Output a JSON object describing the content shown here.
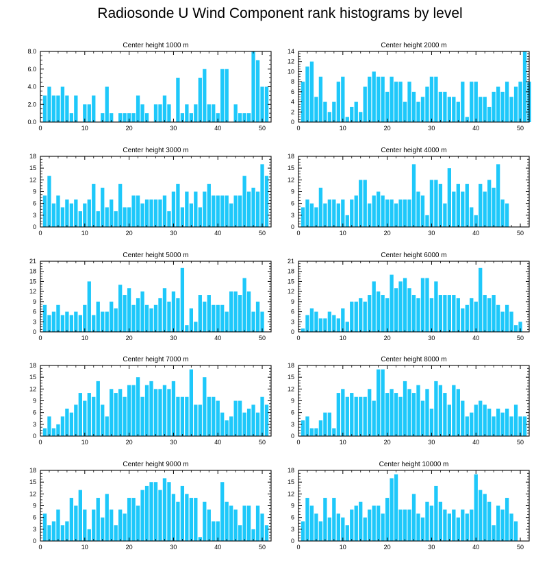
{
  "title": "Radiosonde U Wind Component rank histograms by level",
  "bar_color": "#1ec8fa",
  "chart_data": [
    {
      "type": "bar",
      "title": "Center height 1000 m",
      "xlim": [
        0,
        52
      ],
      "ylim": [
        0,
        8
      ],
      "xticks": [
        0,
        10,
        20,
        30,
        40,
        50
      ],
      "xtick_labels": [
        "0",
        "10",
        "20",
        "30",
        "40",
        "50"
      ],
      "yticks": [
        0,
        2,
        4,
        6,
        8
      ],
      "ytick_labels": [
        "0.0",
        "2.0",
        "4.0",
        "6.0",
        "8.0"
      ],
      "values": [
        3,
        4,
        3,
        3,
        4,
        3,
        1,
        3,
        0,
        2,
        2,
        3,
        0,
        1,
        4,
        1,
        0,
        1,
        1,
        1,
        1,
        3,
        2,
        1,
        0,
        2,
        2,
        3,
        2,
        0,
        5,
        1,
        2,
        1,
        2,
        5,
        6,
        2,
        2,
        1,
        6,
        6,
        0,
        2,
        1,
        1,
        1,
        8,
        7,
        4,
        4
      ]
    },
    {
      "type": "bar",
      "title": "Center height 2000 m",
      "xlim": [
        0,
        52
      ],
      "ylim": [
        0,
        14
      ],
      "xticks": [
        0,
        10,
        20,
        30,
        40,
        50
      ],
      "xtick_labels": [
        "0",
        "10",
        "20",
        "30",
        "40",
        "50"
      ],
      "yticks": [
        0,
        2,
        4,
        6,
        8,
        10,
        12,
        14
      ],
      "ytick_labels": [
        "0",
        "2",
        "4",
        "6",
        "8",
        "10",
        "12",
        "14"
      ],
      "values": [
        8,
        11,
        12,
        5,
        9,
        4,
        2,
        4,
        8,
        9,
        1,
        3,
        4,
        2,
        7,
        9,
        10,
        9,
        9,
        6,
        9,
        8,
        8,
        4,
        8,
        6,
        4,
        5,
        7,
        9,
        9,
        6,
        6,
        5,
        5,
        4,
        8,
        1,
        8,
        8,
        5,
        5,
        3,
        6,
        7,
        6,
        8,
        5,
        7,
        8,
        14,
        8
      ]
    },
    {
      "type": "bar",
      "title": "Center height 3000 m",
      "xlim": [
        0,
        52
      ],
      "ylim": [
        0,
        18
      ],
      "xticks": [
        0,
        10,
        20,
        30,
        40,
        50
      ],
      "xtick_labels": [
        "0",
        "10",
        "20",
        "30",
        "40",
        "50"
      ],
      "yticks": [
        0,
        3,
        6,
        9,
        12,
        15,
        18
      ],
      "ytick_labels": [
        "0",
        "3",
        "6",
        "9",
        "12",
        "15",
        "18"
      ],
      "values": [
        8,
        13,
        6,
        8,
        5,
        7,
        6,
        7,
        4,
        6,
        7,
        11,
        4,
        10,
        5,
        7,
        4,
        11,
        5,
        5,
        8,
        8,
        6,
        7,
        7,
        7,
        7,
        8,
        4,
        9,
        11,
        5,
        9,
        6,
        9,
        5,
        9,
        11,
        8,
        8,
        8,
        8,
        6,
        8,
        8,
        13,
        9,
        10,
        9,
        16,
        13
      ]
    },
    {
      "type": "bar",
      "title": "Center height 4000 m",
      "xlim": [
        0,
        52
      ],
      "ylim": [
        0,
        18
      ],
      "xticks": [
        0,
        10,
        20,
        30,
        40,
        50
      ],
      "xtick_labels": [
        "0",
        "10",
        "20",
        "30",
        "40",
        "50"
      ],
      "yticks": [
        0,
        3,
        6,
        9,
        12,
        15,
        18
      ],
      "ytick_labels": [
        "0",
        "3",
        "6",
        "9",
        "12",
        "15",
        "18"
      ],
      "values": [
        5,
        7,
        6,
        5,
        10,
        6,
        7,
        7,
        6,
        7,
        3,
        7,
        8,
        12,
        12,
        6,
        8,
        9,
        8,
        7,
        7,
        6,
        7,
        7,
        7,
        16,
        9,
        8,
        3,
        12,
        12,
        11,
        6,
        15,
        9,
        11,
        9,
        11,
        5,
        3,
        11,
        9,
        12,
        10,
        16,
        7,
        6
      ]
    },
    {
      "type": "bar",
      "title": "Center height 5000 m",
      "xlim": [
        0,
        52
      ],
      "ylim": [
        0,
        21
      ],
      "xticks": [
        0,
        10,
        20,
        30,
        40,
        50
      ],
      "xtick_labels": [
        "0",
        "10",
        "20",
        "30",
        "40",
        "50"
      ],
      "yticks": [
        0,
        3,
        6,
        9,
        12,
        15,
        18,
        21
      ],
      "ytick_labels": [
        "0",
        "3",
        "6",
        "9",
        "12",
        "15",
        "18",
        "21"
      ],
      "values": [
        8,
        5,
        6,
        8,
        5,
        6,
        5,
        6,
        5,
        8,
        15,
        5,
        9,
        6,
        6,
        9,
        7,
        14,
        11,
        13,
        8,
        10,
        12,
        8,
        7,
        8,
        10,
        13,
        9,
        12,
        10,
        19,
        2,
        7,
        3,
        11,
        9,
        11,
        8,
        8,
        8,
        6,
        12,
        12,
        11,
        16,
        12,
        6,
        9,
        6
      ]
    },
    {
      "type": "bar",
      "title": "Center height 6000 m",
      "xlim": [
        0,
        52
      ],
      "ylim": [
        0,
        21
      ],
      "xticks": [
        0,
        10,
        20,
        30,
        40,
        50
      ],
      "xtick_labels": [
        "0",
        "10",
        "20",
        "30",
        "40",
        "50"
      ],
      "yticks": [
        0,
        3,
        6,
        9,
        12,
        15,
        18,
        21
      ],
      "ytick_labels": [
        "0",
        "3",
        "6",
        "9",
        "12",
        "15",
        "18",
        "21"
      ],
      "values": [
        1,
        5,
        7,
        6,
        4,
        4,
        6,
        5,
        4,
        7,
        3,
        9,
        9,
        10,
        9,
        11,
        15,
        12,
        11,
        10,
        17,
        13,
        15,
        16,
        13,
        11,
        10,
        16,
        16,
        10,
        15,
        11,
        11,
        11,
        11,
        10,
        7,
        8,
        10,
        9,
        19,
        11,
        10,
        11,
        8,
        6,
        8,
        6,
        2,
        3
      ]
    },
    {
      "type": "bar",
      "title": "Center height 7000 m",
      "xlim": [
        0,
        52
      ],
      "ylim": [
        0,
        18
      ],
      "xticks": [
        0,
        10,
        20,
        30,
        40,
        50
      ],
      "xtick_labels": [
        "0",
        "10",
        "20",
        "30",
        "40",
        "50"
      ],
      "yticks": [
        0,
        3,
        6,
        9,
        12,
        15,
        18
      ],
      "ytick_labels": [
        "0",
        "3",
        "6",
        "9",
        "12",
        "15",
        "18"
      ],
      "values": [
        2,
        5,
        2,
        3,
        5,
        7,
        6,
        8,
        11,
        9,
        11,
        10,
        14,
        8,
        5,
        12,
        11,
        12,
        10,
        13,
        13,
        15,
        10,
        13,
        14,
        12,
        12,
        13,
        12,
        14,
        10,
        10,
        10,
        17,
        8,
        8,
        15,
        10,
        10,
        9,
        6,
        4,
        5,
        9,
        9,
        6,
        7,
        8,
        6,
        10,
        8
      ]
    },
    {
      "type": "bar",
      "title": "Center height 8000 m",
      "xlim": [
        0,
        52
      ],
      "ylim": [
        0,
        18
      ],
      "xticks": [
        0,
        10,
        20,
        30,
        40,
        50
      ],
      "xtick_labels": [
        "0",
        "10",
        "20",
        "30",
        "40",
        "50"
      ],
      "yticks": [
        0,
        3,
        6,
        9,
        12,
        15,
        18
      ],
      "ytick_labels": [
        "0",
        "3",
        "6",
        "9",
        "12",
        "15",
        "18"
      ],
      "values": [
        4,
        5,
        2,
        2,
        4,
        6,
        6,
        2,
        11,
        12,
        10,
        11,
        10,
        10,
        10,
        12,
        9,
        17,
        17,
        11,
        12,
        11,
        10,
        14,
        12,
        11,
        13,
        9,
        12,
        7,
        14,
        13,
        11,
        8,
        13,
        12,
        9,
        5,
        6,
        8,
        9,
        8,
        7,
        5,
        7,
        6,
        7,
        5,
        8,
        5,
        5
      ]
    },
    {
      "type": "bar",
      "title": "Center height 9000 m",
      "xlim": [
        0,
        52
      ],
      "ylim": [
        0,
        18
      ],
      "xticks": [
        0,
        10,
        20,
        30,
        40,
        50
      ],
      "xtick_labels": [
        "0",
        "10",
        "20",
        "30",
        "40",
        "50"
      ],
      "yticks": [
        0,
        3,
        6,
        9,
        12,
        15,
        18
      ],
      "ytick_labels": [
        "0",
        "3",
        "6",
        "9",
        "12",
        "15",
        "18"
      ],
      "values": [
        7,
        4,
        5,
        8,
        4,
        5,
        11,
        9,
        13,
        8,
        3,
        8,
        11,
        6,
        12,
        8,
        4,
        8,
        7,
        11,
        11,
        9,
        13,
        14,
        15,
        15,
        13,
        16,
        15,
        12,
        10,
        14,
        12,
        11,
        11,
        1,
        10,
        8,
        5,
        5,
        15,
        10,
        9,
        8,
        4,
        9,
        9,
        3,
        9,
        7,
        4
      ]
    },
    {
      "type": "bar",
      "title": "Center height 10000 m",
      "xlim": [
        0,
        52
      ],
      "ylim": [
        0,
        18
      ],
      "xticks": [
        0,
        10,
        20,
        30,
        40,
        50
      ],
      "xtick_labels": [
        "0",
        "10",
        "20",
        "30",
        "40",
        "50"
      ],
      "yticks": [
        0,
        3,
        6,
        9,
        12,
        15,
        18
      ],
      "ytick_labels": [
        "0",
        "3",
        "6",
        "9",
        "12",
        "15",
        "18"
      ],
      "values": [
        5,
        11,
        9,
        7,
        5,
        11,
        6,
        11,
        7,
        6,
        4,
        8,
        9,
        10,
        6,
        8,
        9,
        9,
        7,
        11,
        16,
        17,
        8,
        8,
        8,
        12,
        7,
        6,
        10,
        9,
        14,
        10,
        8,
        7,
        8,
        6,
        8,
        7,
        8,
        17,
        13,
        12,
        10,
        4,
        9,
        8,
        11,
        7,
        5
      ]
    }
  ]
}
